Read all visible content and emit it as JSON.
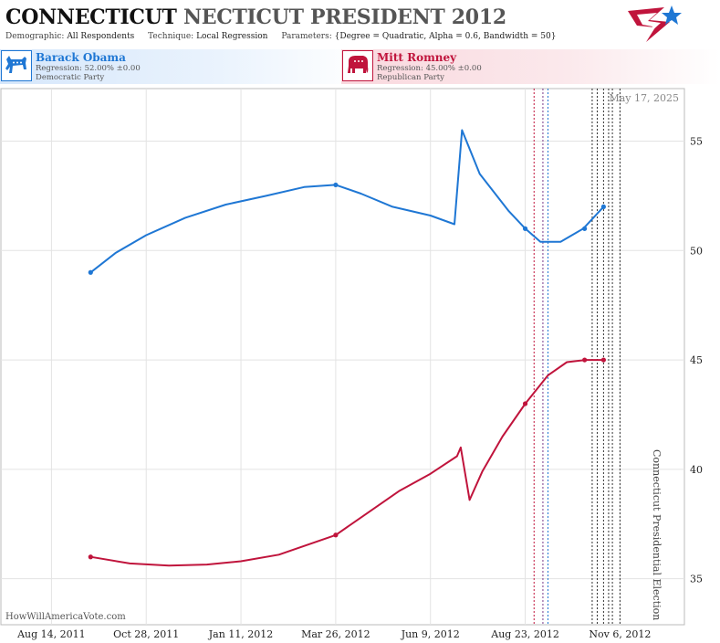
{
  "header": {
    "title_state": "CONNECTICUT",
    "title_rest": "NECTICUT PRESIDENT 2012",
    "demographic_label": "Demographic:",
    "demographic_value": "All Respondents",
    "technique_label": "Technique:",
    "technique_value": "Local Regression",
    "parameters_label": "Parameters:",
    "parameters_value": "{Degree = Quadratic, Alpha = 0.6, Bandwidth = 50}"
  },
  "candidates": [
    {
      "name": "Barack Obama",
      "regression": "Regression: 52.00% ±0.00",
      "party": "Democratic Party",
      "color": "#1f77d4"
    },
    {
      "name": "Mitt Romney",
      "regression": "Regression: 45.00% ±0.00",
      "party": "Republican Party",
      "color": "#c0143c"
    }
  ],
  "watermark": "HowWillAmericaVote.com",
  "chart_data": {
    "type": "line",
    "date_label": "May 17, 2025",
    "event_label": "Connecticut Presidential Election",
    "event_date": "2012-11-06",
    "x_ticks": [
      "Aug 14, 2011",
      "Oct 28, 2011",
      "Jan 11, 2012",
      "Mar 26, 2012",
      "Jun 9, 2012",
      "Aug 23, 2012",
      "Nov 6, 2012"
    ],
    "y_ticks": [
      35,
      40,
      45,
      50,
      55
    ],
    "ylim": [
      32.9,
      57.4
    ],
    "x_range": [
      "2011-07-05",
      "2012-12-27"
    ],
    "grid": true,
    "poll_dates": [
      "2012-08-30",
      "2012-09-06",
      "2012-09-10",
      "2012-10-15",
      "2012-10-19",
      "2012-10-24",
      "2012-10-28",
      "2012-10-31"
    ],
    "series": [
      {
        "name": "Barack Obama",
        "color": "#1f77d4",
        "line": [
          [
            "2011-09-14",
            49.0
          ],
          [
            "2011-10-04",
            49.9
          ],
          [
            "2011-10-28",
            50.7
          ],
          [
            "2011-11-28",
            51.5
          ],
          [
            "2011-12-30",
            52.1
          ],
          [
            "2012-01-31",
            52.5
          ],
          [
            "2012-03-01",
            52.9
          ],
          [
            "2012-03-26",
            53.0
          ],
          [
            "2012-04-15",
            52.6
          ],
          [
            "2012-05-10",
            52.0
          ],
          [
            "2012-06-09",
            51.6
          ],
          [
            "2012-06-28",
            51.2
          ],
          [
            "2012-07-04",
            55.5
          ],
          [
            "2012-07-18",
            53.5
          ],
          [
            "2012-08-10",
            51.8
          ],
          [
            "2012-08-23",
            51.0
          ],
          [
            "2012-09-04",
            50.4
          ],
          [
            "2012-09-20",
            50.4
          ],
          [
            "2012-10-08",
            51.0
          ],
          [
            "2012-10-24",
            52.0
          ]
        ],
        "points": [
          [
            "2011-09-14",
            49.0
          ],
          [
            "2012-03-26",
            53.0
          ],
          [
            "2012-08-23",
            51.0
          ],
          [
            "2012-10-09",
            51.0
          ],
          [
            "2012-10-24",
            52.0
          ]
        ]
      },
      {
        "name": "Mitt Romney",
        "color": "#c0143c",
        "line": [
          [
            "2011-09-14",
            36.0
          ],
          [
            "2011-10-15",
            35.7
          ],
          [
            "2011-11-15",
            35.6
          ],
          [
            "2011-12-15",
            35.65
          ],
          [
            "2012-01-11",
            35.8
          ],
          [
            "2012-02-10",
            36.1
          ],
          [
            "2012-03-26",
            37.0
          ],
          [
            "2012-04-20",
            38.0
          ],
          [
            "2012-05-15",
            39.0
          ],
          [
            "2012-06-09",
            39.8
          ],
          [
            "2012-06-30",
            40.6
          ],
          [
            "2012-07-03",
            41.0
          ],
          [
            "2012-07-10",
            38.6
          ],
          [
            "2012-07-20",
            39.9
          ],
          [
            "2012-08-05",
            41.5
          ],
          [
            "2012-08-23",
            43.0
          ],
          [
            "2012-09-10",
            44.3
          ],
          [
            "2012-09-25",
            44.9
          ],
          [
            "2012-10-10",
            45.0
          ],
          [
            "2012-10-24",
            45.0
          ]
        ],
        "points": [
          [
            "2011-09-14",
            36.0
          ],
          [
            "2012-03-26",
            37.0
          ],
          [
            "2012-08-23",
            43.0
          ],
          [
            "2012-10-09",
            45.0
          ],
          [
            "2012-10-24",
            45.0
          ]
        ]
      }
    ]
  }
}
